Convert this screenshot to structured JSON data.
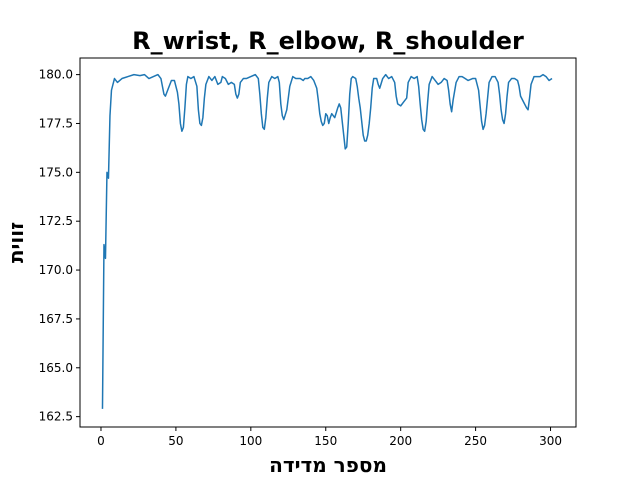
{
  "chart_data": {
    "type": "line",
    "title": "R_wrist, R_elbow, R_shoulder",
    "xlabel": "מספר מדידה",
    "ylabel": "זווית",
    "xlim": [
      -14,
      317
    ],
    "ylim": [
      161.97,
      180.85
    ],
    "x_ticks": [
      0,
      50,
      100,
      150,
      200,
      250,
      300
    ],
    "y_ticks": [
      162.5,
      165.0,
      167.5,
      170.0,
      172.5,
      175.0,
      177.5,
      180.0
    ],
    "x_tick_labels": [
      "0",
      "50",
      "100",
      "150",
      "200",
      "250",
      "300"
    ],
    "y_tick_labels": [
      "162.5",
      "165.0",
      "167.5",
      "170.0",
      "172.5",
      "175.0",
      "177.5",
      "180.0"
    ],
    "grid": false,
    "series": [
      {
        "color": "#1f77b4",
        "points": [
          [
            1,
            162.9
          ],
          [
            2,
            171.3
          ],
          [
            3,
            170.6
          ],
          [
            4,
            175.0
          ],
          [
            5,
            174.7
          ],
          [
            6,
            177.9
          ],
          [
            7,
            179.2
          ],
          [
            9,
            179.8
          ],
          [
            11,
            179.6
          ],
          [
            14,
            179.8
          ],
          [
            18,
            179.9
          ],
          [
            22,
            180.0
          ],
          [
            26,
            179.95
          ],
          [
            29,
            180.0
          ],
          [
            32,
            179.8
          ],
          [
            35,
            179.9
          ],
          [
            38,
            180.0
          ],
          [
            40,
            179.8
          ],
          [
            42,
            179.0
          ],
          [
            43,
            178.9
          ],
          [
            45,
            179.3
          ],
          [
            47,
            179.7
          ],
          [
            49,
            179.7
          ],
          [
            51,
            179.1
          ],
          [
            52,
            178.5
          ],
          [
            53,
            177.5
          ],
          [
            54,
            177.1
          ],
          [
            55,
            177.3
          ],
          [
            56,
            178.3
          ],
          [
            57,
            179.5
          ],
          [
            58,
            179.9
          ],
          [
            60,
            179.8
          ],
          [
            62,
            179.9
          ],
          [
            64,
            179.4
          ],
          [
            65,
            178.2
          ],
          [
            66,
            177.5
          ],
          [
            67,
            177.4
          ],
          [
            68,
            177.8
          ],
          [
            69,
            178.8
          ],
          [
            70,
            179.5
          ],
          [
            72,
            179.9
          ],
          [
            74,
            179.7
          ],
          [
            76,
            179.9
          ],
          [
            78,
            179.5
          ],
          [
            80,
            179.6
          ],
          [
            81,
            179.9
          ],
          [
            83,
            179.8
          ],
          [
            85,
            179.5
          ],
          [
            87,
            179.6
          ],
          [
            89,
            179.5
          ],
          [
            90,
            179.0
          ],
          [
            91,
            178.8
          ],
          [
            92,
            179.0
          ],
          [
            93,
            179.6
          ],
          [
            95,
            179.8
          ],
          [
            97,
            179.8
          ],
          [
            100,
            179.9
          ],
          [
            103,
            180.0
          ],
          [
            105,
            179.8
          ],
          [
            106,
            179.0
          ],
          [
            107,
            178.0
          ],
          [
            108,
            177.3
          ],
          [
            109,
            177.2
          ],
          [
            110,
            177.8
          ],
          [
            111,
            178.8
          ],
          [
            112,
            179.6
          ],
          [
            114,
            179.9
          ],
          [
            116,
            179.8
          ],
          [
            118,
            179.9
          ],
          [
            119,
            179.6
          ],
          [
            120,
            178.5
          ],
          [
            121,
            177.9
          ],
          [
            122,
            177.7
          ],
          [
            124,
            178.2
          ],
          [
            126,
            179.4
          ],
          [
            128,
            179.9
          ],
          [
            130,
            179.8
          ],
          [
            133,
            179.8
          ],
          [
            135,
            179.7
          ],
          [
            136,
            179.8
          ],
          [
            138,
            179.8
          ],
          [
            140,
            179.9
          ],
          [
            142,
            179.7
          ],
          [
            144,
            179.3
          ],
          [
            145,
            178.7
          ],
          [
            146,
            178.0
          ],
          [
            147,
            177.6
          ],
          [
            148,
            177.4
          ],
          [
            149,
            177.5
          ],
          [
            150,
            178.0
          ],
          [
            151,
            177.9
          ],
          [
            152,
            177.5
          ],
          [
            153,
            177.8
          ],
          [
            154,
            178.0
          ],
          [
            155,
            177.9
          ],
          [
            156,
            177.8
          ],
          [
            158,
            178.3
          ],
          [
            159,
            178.5
          ],
          [
            160,
            178.3
          ],
          [
            161,
            177.6
          ],
          [
            162,
            176.9
          ],
          [
            163,
            176.2
          ],
          [
            164,
            176.3
          ],
          [
            165,
            177.5
          ],
          [
            166,
            179.0
          ],
          [
            167,
            179.8
          ],
          [
            168,
            179.9
          ],
          [
            170,
            179.8
          ],
          [
            171,
            179.4
          ],
          [
            172,
            178.8
          ],
          [
            173,
            178.3
          ],
          [
            174,
            177.6
          ],
          [
            175,
            176.9
          ],
          [
            176,
            176.6
          ],
          [
            177,
            176.6
          ],
          [
            178,
            176.9
          ],
          [
            179,
            177.5
          ],
          [
            180,
            178.3
          ],
          [
            181,
            179.3
          ],
          [
            182,
            179.8
          ],
          [
            184,
            179.8
          ],
          [
            185,
            179.5
          ],
          [
            186,
            179.3
          ],
          [
            188,
            179.8
          ],
          [
            190,
            180.0
          ],
          [
            192,
            179.8
          ],
          [
            194,
            179.9
          ],
          [
            196,
            179.6
          ],
          [
            197,
            178.9
          ],
          [
            198,
            178.5
          ],
          [
            200,
            178.4
          ],
          [
            202,
            178.6
          ],
          [
            204,
            178.8
          ],
          [
            205,
            179.6
          ],
          [
            207,
            179.9
          ],
          [
            209,
            179.8
          ],
          [
            211,
            179.9
          ],
          [
            212,
            179.4
          ],
          [
            213,
            178.5
          ],
          [
            214,
            177.7
          ],
          [
            215,
            177.2
          ],
          [
            216,
            177.1
          ],
          [
            217,
            177.6
          ],
          [
            218,
            178.6
          ],
          [
            219,
            179.5
          ],
          [
            221,
            179.9
          ],
          [
            223,
            179.7
          ],
          [
            225,
            179.5
          ],
          [
            227,
            179.6
          ],
          [
            229,
            179.8
          ],
          [
            231,
            179.7
          ],
          [
            232,
            179.2
          ],
          [
            233,
            178.5
          ],
          [
            234,
            178.1
          ],
          [
            235,
            178.7
          ],
          [
            237,
            179.6
          ],
          [
            239,
            179.9
          ],
          [
            241,
            179.9
          ],
          [
            243,
            179.8
          ],
          [
            245,
            179.7
          ],
          [
            248,
            179.8
          ],
          [
            250,
            179.8
          ],
          [
            252,
            179.2
          ],
          [
            253,
            178.4
          ],
          [
            254,
            177.6
          ],
          [
            255,
            177.2
          ],
          [
            256,
            177.4
          ],
          [
            257,
            178.0
          ],
          [
            258,
            178.8
          ],
          [
            259,
            179.6
          ],
          [
            261,
            179.9
          ],
          [
            263,
            179.9
          ],
          [
            265,
            179.6
          ],
          [
            266,
            179.0
          ],
          [
            267,
            178.2
          ],
          [
            268,
            177.7
          ],
          [
            269,
            177.5
          ],
          [
            270,
            178.0
          ],
          [
            271,
            178.9
          ],
          [
            272,
            179.6
          ],
          [
            274,
            179.8
          ],
          [
            276,
            179.8
          ],
          [
            278,
            179.7
          ],
          [
            279,
            179.4
          ],
          [
            280,
            178.9
          ],
          [
            282,
            178.6
          ],
          [
            284,
            178.3
          ],
          [
            285,
            178.2
          ],
          [
            286,
            178.8
          ],
          [
            287,
            179.5
          ],
          [
            289,
            179.9
          ],
          [
            291,
            179.9
          ],
          [
            293,
            179.9
          ],
          [
            295,
            180.0
          ],
          [
            297,
            179.9
          ],
          [
            299,
            179.7
          ],
          [
            301,
            179.8
          ]
        ]
      }
    ]
  }
}
